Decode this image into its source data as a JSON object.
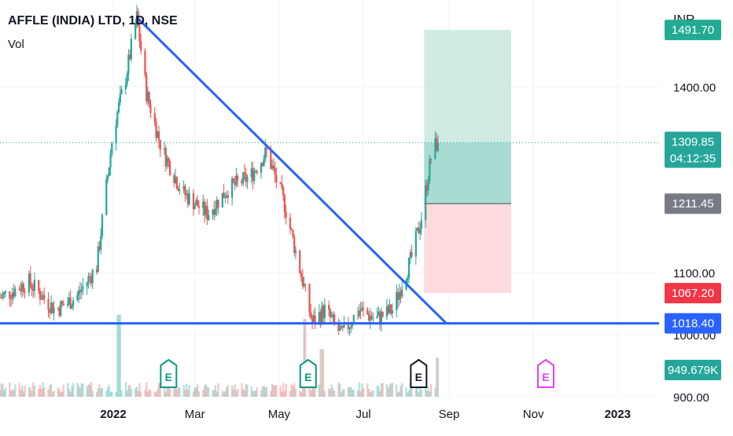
{
  "header": {
    "symbol_title": "AFFLE (INDIA) LTD, 1D, NSE",
    "indicator_label": "Vol"
  },
  "price_axis": {
    "currency": "INR",
    "tick_labels": [
      {
        "label": "1400.00",
        "value": 1400
      },
      {
        "label": "1100.00",
        "value": 1100
      },
      {
        "label": "1000.00",
        "value": 1000
      },
      {
        "label": "900.00",
        "value": 900
      }
    ],
    "badges": [
      {
        "name": "target-price-badge",
        "label": "1491.70",
        "value": 1491.7,
        "color": "#22ab94"
      },
      {
        "name": "last-price-badge",
        "label": "1309.85",
        "sublabel": "04:12:35",
        "value": 1309.85,
        "color": "#26a69a"
      },
      {
        "name": "entry-price-badge",
        "label": "1211.45",
        "value": 1211.45,
        "color": "#787b86"
      },
      {
        "name": "stop-price-badge",
        "label": "1067.20",
        "value": 1067.2,
        "color": "#f23645"
      },
      {
        "name": "support-price-badge",
        "label": "1018.40",
        "value": 1018.4,
        "color": "#2962ff"
      },
      {
        "name": "volume-badge",
        "label": "949.679K",
        "value": 949.679,
        "color": "#26a69a"
      }
    ]
  },
  "time_axis": {
    "labels": [
      {
        "label": "2022",
        "bold": true
      },
      {
        "label": "Mar",
        "bold": false
      },
      {
        "label": "May",
        "bold": false
      },
      {
        "label": "Jul",
        "bold": false
      },
      {
        "label": "Sep",
        "bold": false
      },
      {
        "label": "Nov",
        "bold": false
      },
      {
        "label": "2023",
        "bold": true
      }
    ]
  },
  "earnings_markers": [
    {
      "label": "E",
      "color": "#089981"
    },
    {
      "label": "E",
      "color": "#089981"
    },
    {
      "label": "E",
      "color": "#131722"
    },
    {
      "label": "E",
      "color": "#e040fb"
    }
  ],
  "colors": {
    "up": "#26a69a",
    "down": "#ef5350",
    "trendline": "#2962ff",
    "profit_zone": "#d0ebe4",
    "profit_zone_dark": "#a8dcd3",
    "loss_zone": "#fcdadd",
    "grid": "#f0f3fa"
  },
  "chart_data": {
    "type": "candlestick",
    "title": "AFFLE (INDIA) LTD, 1D, NSE",
    "currency": "INR",
    "x_range": [
      "2021-10-11",
      "2023-01-31"
    ],
    "y_range": [
      900,
      1540
    ],
    "last_price": 1309.85,
    "countdown": "04:12:35",
    "price_path": [
      {
        "date": "2021-10-11",
        "price": 1060
      },
      {
        "date": "2021-11-01",
        "price": 1085
      },
      {
        "date": "2021-11-20",
        "price": 1040
      },
      {
        "date": "2021-12-05",
        "price": 1060
      },
      {
        "date": "2021-12-20",
        "price": 1110
      },
      {
        "date": "2022-01-01",
        "price": 1330
      },
      {
        "date": "2022-01-10",
        "price": 1415
      },
      {
        "date": "2022-01-18",
        "price": 1512
      },
      {
        "date": "2022-01-25",
        "price": 1390
      },
      {
        "date": "2022-02-05",
        "price": 1300
      },
      {
        "date": "2022-02-20",
        "price": 1230
      },
      {
        "date": "2022-03-10",
        "price": 1195
      },
      {
        "date": "2022-03-25",
        "price": 1235
      },
      {
        "date": "2022-04-10",
        "price": 1255
      },
      {
        "date": "2022-04-22",
        "price": 1295
      },
      {
        "date": "2022-05-05",
        "price": 1210
      },
      {
        "date": "2022-05-15",
        "price": 1115
      },
      {
        "date": "2022-05-25",
        "price": 1020
      },
      {
        "date": "2022-06-03",
        "price": 1040
      },
      {
        "date": "2022-06-15",
        "price": 1000
      },
      {
        "date": "2022-06-28",
        "price": 1040
      },
      {
        "date": "2022-07-10",
        "price": 1025
      },
      {
        "date": "2022-07-22",
        "price": 1040
      },
      {
        "date": "2022-08-05",
        "price": 1125
      },
      {
        "date": "2022-08-12",
        "price": 1190
      },
      {
        "date": "2022-08-20",
        "price": 1300
      },
      {
        "date": "2022-08-24",
        "price": 1309.85
      }
    ],
    "volume": {
      "last": "949.679K",
      "spikes": [
        {
          "date": "2022-01-05",
          "relative": 0.95
        },
        {
          "date": "2022-05-20",
          "relative": 0.9
        },
        {
          "date": "2022-06-01",
          "relative": 0.55
        },
        {
          "date": "2022-08-24",
          "relative": 0.45
        }
      ]
    },
    "drawings": {
      "descending_trendline": [
        {
          "date": "2022-01-18",
          "price": 1512
        },
        {
          "date": "2022-08-30",
          "price": 1018.4
        }
      ],
      "support_line": {
        "price": 1018.4
      },
      "long_position": {
        "start": "2022-08-14",
        "end": "2022-10-16",
        "entry": 1211.45,
        "target": 1491.7,
        "stop": 1067.2
      }
    },
    "earnings_dates": [
      "2022-02-10",
      "2022-05-22",
      "2022-08-10",
      "2022-11-10"
    ],
    "time_axis_dates": [
      "2022-01-01",
      "2022-03-01",
      "2022-05-01",
      "2022-07-01",
      "2022-09-01",
      "2022-11-01",
      "2023-01-01"
    ]
  }
}
